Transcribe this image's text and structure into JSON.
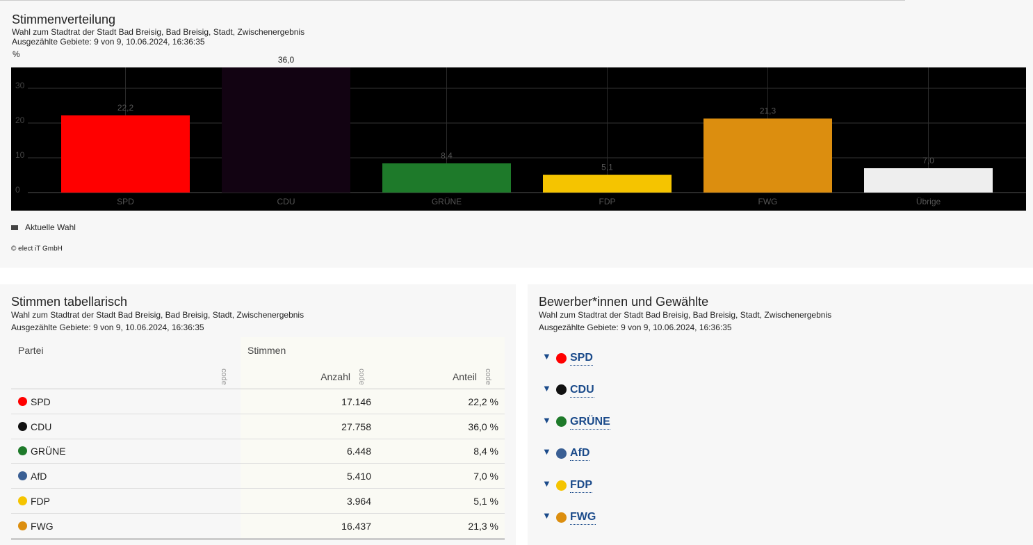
{
  "chart_data": {
    "type": "bar",
    "title": "Stimmenverteilung",
    "subtitle": "Wahl zum Stadtrat der Stadt Bad Breisig, Bad Breisig, Stadt, Zwischenergebnis",
    "status": "Ausgezählte Gebiete: 9 von 9, 10.06.2024, 16:36:35",
    "y_label": "%",
    "categories": [
      "SPD",
      "CDU",
      "GRÜNE",
      "FDP",
      "FWG",
      "Übrige"
    ],
    "series": [
      {
        "name": "Aktuelle Wahl",
        "color": "#444444",
        "values": [
          22.2,
          36.0,
          8.4,
          5.1,
          21.3,
          7.0
        ],
        "value_labels": [
          "22,2",
          "36,0",
          "8,4",
          "5,1",
          "21,3",
          "7,0"
        ],
        "bar_colors": [
          "#ff0000",
          "#120312",
          "#1e7a2a",
          "#f5c400",
          "#dc8e0f",
          "#eeeeee"
        ]
      }
    ],
    "ylim": [
      0,
      36
    ],
    "yticks": [
      0,
      10,
      20,
      30
    ],
    "grid": true,
    "copyright": "© elect iT GmbH"
  },
  "table_panel": {
    "title": "Stimmen tabellarisch",
    "subtitle": "Wahl zum Stadtrat der Stadt Bad Breisig, Bad Breisig, Stadt, Zwischenergebnis",
    "status": "Ausgezählte Gebiete: 9 von 9, 10.06.2024, 16:36:35",
    "headers": {
      "party": "Partei",
      "votes": "Stimmen",
      "count": "Anzahl",
      "share": "Anteil",
      "code": "code"
    },
    "rows": [
      {
        "party": "SPD",
        "color": "#ff0000",
        "count": "17.146",
        "share": "22,2 %"
      },
      {
        "party": "CDU",
        "color": "#111111",
        "count": "27.758",
        "share": "36,0 %"
      },
      {
        "party": "GRÜNE",
        "color": "#1e7a2a",
        "count": "6.448",
        "share": "8,4 %"
      },
      {
        "party": "AfD",
        "color": "#3a5f94",
        "count": "5.410",
        "share": "7,0 %"
      },
      {
        "party": "FDP",
        "color": "#f5c400",
        "count": "3.964",
        "share": "5,1 %"
      },
      {
        "party": "FWG",
        "color": "#dc8e0f",
        "count": "16.437",
        "share": "21,3 %"
      }
    ]
  },
  "candidates_panel": {
    "title": "Bewerber*innen und Gewählte",
    "subtitle": "Wahl zum Stadtrat der Stadt Bad Breisig, Bad Breisig, Stadt, Zwischenergebnis",
    "status": "Ausgezählte Gebiete: 9 von 9, 10.06.2024, 16:36:35",
    "parties": [
      {
        "name": "SPD",
        "color": "#ff0000"
      },
      {
        "name": "CDU",
        "color": "#111111"
      },
      {
        "name": "GRÜNE",
        "color": "#1e7a2a"
      },
      {
        "name": "AfD",
        "color": "#3a5f94"
      },
      {
        "name": "FDP",
        "color": "#f5c400"
      },
      {
        "name": "FWG",
        "color": "#dc8e0f"
      }
    ]
  }
}
